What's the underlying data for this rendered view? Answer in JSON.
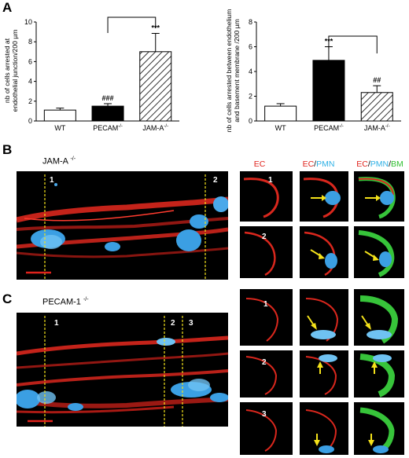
{
  "panel_a": {
    "letter": "A",
    "charts": [
      {
        "type": "bar",
        "ylabel": [
          "nb of cells arrested at",
          "endothelial junction/200 µm"
        ],
        "ylim": [
          0,
          10
        ],
        "yticks": [
          "0",
          "2",
          "4",
          "6",
          "8",
          "10"
        ],
        "categories": [
          "WT",
          "PECAM",
          "JAM-A"
        ],
        "superscripts": [
          "",
          "-/-",
          "-/-"
        ],
        "fills": [
          "white",
          "black",
          "hatch"
        ],
        "values": [
          1.1,
          1.5,
          7.0
        ],
        "errors": [
          0.2,
          0.25,
          1.85
        ],
        "annotations": [
          "",
          "###",
          "***"
        ]
      },
      {
        "type": "bar",
        "ylabel": [
          "nb of cells arrested between endothelium",
          "and basement membrane /200 µm"
        ],
        "ylim": [
          0,
          8
        ],
        "yticks": [
          "0",
          "2",
          "4",
          "6",
          "8"
        ],
        "categories": [
          "WT",
          "PECAM",
          "JAM-A"
        ],
        "superscripts": [
          "",
          "-/-",
          "-/-"
        ],
        "fills": [
          "white",
          "black",
          "hatch"
        ],
        "values": [
          1.2,
          4.9,
          2.3
        ],
        "errors": [
          0.2,
          1.1,
          0.55
        ],
        "annotations": [
          "",
          "***",
          "##"
        ]
      }
    ]
  },
  "panel_b": {
    "letter": "B",
    "strain": "JAM-A",
    "strain_sup": "-/-",
    "markers": [
      "1",
      "2"
    ],
    "col_titles": {
      "ec": "EC",
      "slash": "/",
      "pmn": "PMN",
      "bm": "BM"
    },
    "rows": [
      "1",
      "2"
    ]
  },
  "panel_c": {
    "letter": "C",
    "strain": "PECAM-1",
    "strain_sup": "-/-",
    "markers": [
      "1",
      "2",
      "3"
    ],
    "rows": [
      "1",
      "2",
      "3"
    ]
  },
  "colors": {
    "ec": "#e0231c",
    "pmn": "#2fb1e6",
    "bm": "#2fbf2f",
    "arrow": "#f4e21a"
  }
}
